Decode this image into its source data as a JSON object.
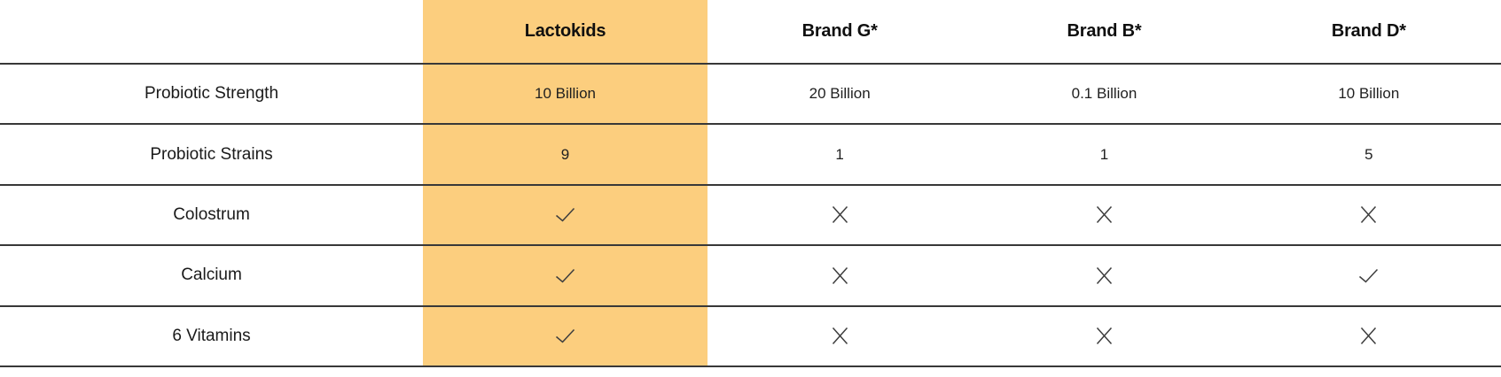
{
  "table": {
    "columns": [
      {
        "label": "",
        "highlighted": false
      },
      {
        "label": "Lactokids",
        "highlighted": true
      },
      {
        "label": "Brand G*",
        "highlighted": false
      },
      {
        "label": "Brand B*",
        "highlighted": false
      },
      {
        "label": "Brand D*",
        "highlighted": false
      }
    ],
    "rows": [
      {
        "label": "Probiotic Strength",
        "values": [
          "10 Billion",
          "20 Billion",
          "0.1 Billion",
          "10 Billion"
        ]
      },
      {
        "label": "Probiotic Strains",
        "values": [
          "9",
          "1",
          "1",
          "5"
        ]
      },
      {
        "label": "Colostrum",
        "values": [
          "check",
          "cross",
          "cross",
          "cross"
        ]
      },
      {
        "label": "Calcium",
        "values": [
          "check",
          "cross",
          "cross",
          "check"
        ]
      },
      {
        "label": "6 Vitamins",
        "values": [
          "check",
          "cross",
          "cross",
          "cross"
        ]
      }
    ]
  },
  "icons": {
    "check": "check-icon",
    "cross": "cross-icon"
  },
  "colors": {
    "highlight_column": "#FCCE7E",
    "divider_line": "#383838",
    "mark_stroke": "#3e3e3e",
    "text": "#1a1a1a"
  },
  "chart_data": {
    "type": "table",
    "title": "",
    "columns": [
      "",
      "Lactokids",
      "Brand G*",
      "Brand B*",
      "Brand D*"
    ],
    "rows": [
      [
        "Probiotic Strength",
        "10 Billion",
        "20 Billion",
        "0.1 Billion",
        "10 Billion"
      ],
      [
        "Probiotic Strains",
        "9",
        "1",
        "1",
        "5"
      ],
      [
        "Colostrum",
        "✓",
        "✕",
        "✕",
        "✕"
      ],
      [
        "Calcium",
        "✓",
        "✕",
        "✕",
        "✓"
      ],
      [
        "6 Vitamins",
        "✓",
        "✕",
        "✕",
        "✕"
      ]
    ],
    "highlighted_column": "Lactokids",
    "legend_position": "none",
    "grid": "horizontal-lines-only"
  }
}
